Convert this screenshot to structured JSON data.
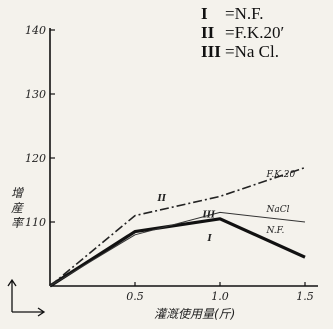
{
  "chart_data": {
    "type": "line",
    "title": "",
    "xlabel": "灌漑使用量(斤)",
    "ylabel": "增産率",
    "x_ticks": [
      "0.5",
      "1.0",
      "1.5"
    ],
    "y_ticks": [
      "100",
      "110",
      "120",
      "130",
      "140"
    ],
    "xlim": [
      0,
      1.5
    ],
    "ylim": [
      100,
      140
    ],
    "legend": [
      {
        "key": "I",
        "text": "=N.F."
      },
      {
        "key": "II",
        "text": "=F.K.20′"
      },
      {
        "key": "III",
        "text": "=Na Cl."
      }
    ],
    "series": [
      {
        "name": "I",
        "end_label": "N.F.",
        "style": "bold",
        "color": "#111111",
        "x": [
          0,
          0.5,
          1.0,
          1.5
        ],
        "y": [
          100,
          108.5,
          110.5,
          104.5
        ]
      },
      {
        "name": "II",
        "end_label": "F.K.20",
        "style": "dashdot",
        "color": "#222222",
        "x": [
          0,
          0.5,
          1.0,
          1.5
        ],
        "y": [
          100,
          111,
          114,
          118.5
        ]
      },
      {
        "name": "III",
        "end_label": "NaCl",
        "style": "thin",
        "color": "#333333",
        "x": [
          0,
          0.5,
          1.0,
          1.5
        ],
        "y": [
          100,
          108,
          111.5,
          110
        ]
      }
    ],
    "grid": false,
    "legend_position": "top-right"
  }
}
